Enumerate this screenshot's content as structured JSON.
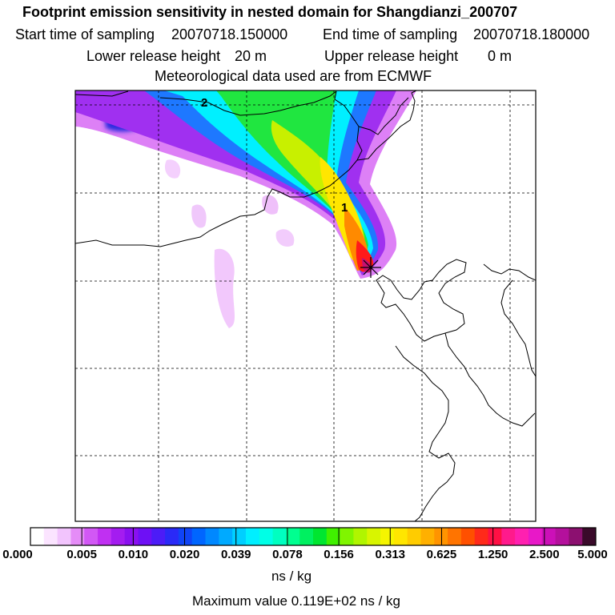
{
  "header": {
    "title": "Footprint emission sensitivity in nested domain for Shangdianzi_200707",
    "start_label": "Start time of sampling",
    "start_value": "20070718.150000",
    "end_label": "End time of sampling",
    "end_value": "20070718.180000",
    "lower_label": "Lower release height",
    "lower_value": "20 m",
    "upper_label": "Upper release height",
    "upper_value": "0 m",
    "met_text": "Meteorological data used are from ECMWF"
  },
  "map": {
    "contour_labels": [
      "2",
      "1"
    ],
    "release_marker": "star-marker-icon",
    "colors": {
      "plume_low": "#e07cf5",
      "plume_mid": "#00ffff",
      "plume_green": "#00e64d",
      "plume_yellow": "#ffff00",
      "plume_orange": "#ff8800",
      "plume_red": "#ff1a1a"
    }
  },
  "colorbar": {
    "labels": [
      "0.000",
      "0.005",
      "0.010",
      "0.020",
      "0.039",
      "0.078",
      "0.156",
      "0.313",
      "0.625",
      "1.250",
      "2.500",
      "5.000"
    ],
    "colors": [
      "#ffffff",
      "#fbe4ff",
      "#f2c4fd",
      "#e58cf7",
      "#d258f5",
      "#c030f2",
      "#a41cf0",
      "#8a10f0",
      "#6e10f5",
      "#4c1cf7",
      "#2a2af7",
      "#1044f7",
      "#0066ff",
      "#0088ff",
      "#00aaff",
      "#00cfff",
      "#00efff",
      "#00ffe6",
      "#00ffc0",
      "#00ff90",
      "#00f060",
      "#00e630",
      "#40f000",
      "#80f500",
      "#b0f500",
      "#d8f500",
      "#f5f500",
      "#ffe600",
      "#ffcc00",
      "#ffb000",
      "#ff9400",
      "#ff7400",
      "#ff5000",
      "#ff2a1a",
      "#ff1044",
      "#ff1a8c",
      "#ff20b0",
      "#e818c8",
      "#cc10b8",
      "#b4109c",
      "#8c1070",
      "#3a0a2a"
    ],
    "unit": "ns / kg",
    "max_label": "Maximum value",
    "max_value": "0.119E+02 ns / kg"
  }
}
